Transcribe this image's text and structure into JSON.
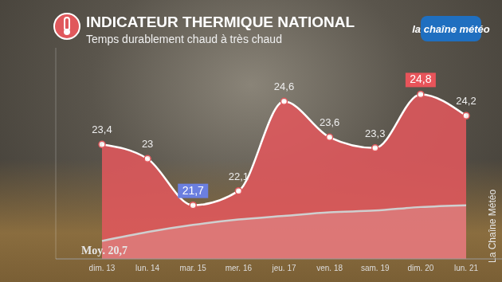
{
  "chart_data": {
    "type": "area",
    "title": "INDICATEUR THERMIQUE NATIONAL",
    "subtitle": "Temps durablement chaud à très chaud",
    "logo": "la chaîne météo",
    "credit": "La Chaîne Météo",
    "categories": [
      "dim. 13",
      "lun. 14",
      "mar. 15",
      "mer. 16",
      "jeu. 17",
      "ven. 18",
      "sam. 19",
      "dim. 20",
      "lun. 21"
    ],
    "series": [
      {
        "color": "#e0585c",
        "values": [
          23.4,
          23,
          21.7,
          22.1,
          24.6,
          23.6,
          23.3,
          24.8,
          24.2
        ],
        "value_labels": [
          "23,4",
          "23",
          "21,7",
          "22,1",
          "24,6",
          "23,6",
          "23,3",
          "24,8",
          "24,2"
        ]
      },
      {
        "name": "Moy.",
        "color": "#cfcfcf",
        "values": [
          20.7,
          20.95,
          21.15,
          21.3,
          21.4,
          21.5,
          21.55,
          21.65,
          21.7
        ],
        "value_labels": [
          "20,7",
          null,
          null,
          null,
          null,
          null,
          null,
          null,
          null
        ]
      }
    ],
    "ylim": [
      20.2,
      26.1
    ],
    "tick_labels": "x",
    "data_labels": true,
    "grid": false
  }
}
